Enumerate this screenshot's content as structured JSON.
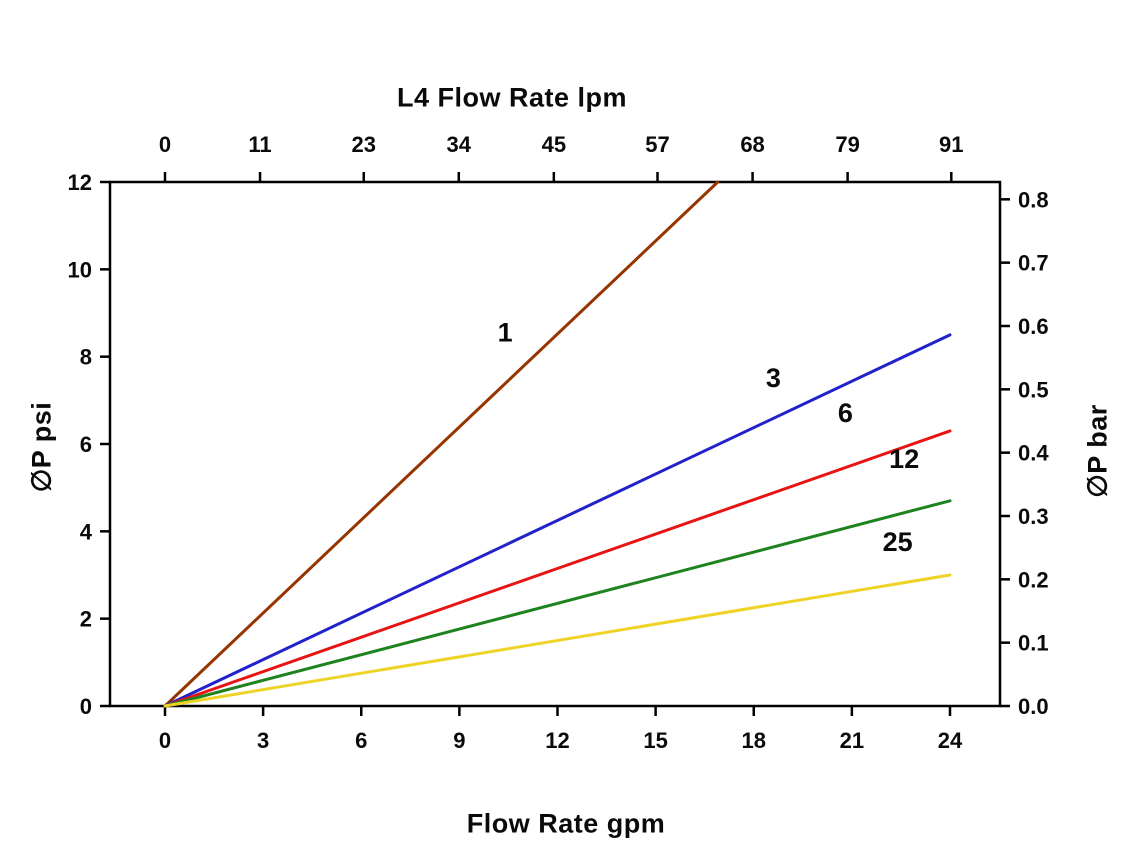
{
  "chart_data": {
    "type": "line",
    "title": "",
    "x_top": {
      "label": "L4 Flow Rate lpm",
      "ticks": [
        0,
        11,
        23,
        34,
        45,
        57,
        68,
        79,
        91
      ],
      "lpm_per_gpm": 3.78541
    },
    "x_bottom": {
      "label": "Flow Rate gpm",
      "ticks": [
        0,
        3,
        6,
        9,
        12,
        15,
        18,
        21,
        24
      ],
      "range": [
        0,
        24
      ]
    },
    "y_left": {
      "label": "∅P psi",
      "ticks": [
        0,
        2,
        4,
        6,
        8,
        10,
        12
      ],
      "range": [
        0,
        12
      ]
    },
    "y_right": {
      "label": "∅P bar",
      "tick_labels": [
        "0.0",
        "0.1",
        "0.2",
        "0.3",
        "0.4",
        "0.5",
        "0.6",
        "0.7",
        "0.8"
      ],
      "psi_per_bar": 14.5038
    },
    "grid": false,
    "legend": "inline-labels",
    "series": [
      {
        "name": "1",
        "color": "#953500",
        "points": [
          [
            0,
            0
          ],
          [
            16.9,
            12
          ]
        ]
      },
      {
        "name": "3",
        "color": "#2222cc",
        "points": [
          [
            0,
            0
          ],
          [
            24,
            8.5
          ]
        ]
      },
      {
        "name": "6",
        "color": "#e81414",
        "points": [
          [
            0,
            0
          ],
          [
            24,
            6.3
          ]
        ]
      },
      {
        "name": "12",
        "color": "#1e821e",
        "points": [
          [
            0,
            0
          ],
          [
            24,
            4.7
          ]
        ]
      },
      {
        "name": "25",
        "color": "#eed327",
        "points": [
          [
            0,
            0
          ],
          [
            24,
            3.0
          ]
        ]
      }
    ],
    "series_labels": [
      {
        "text": "1",
        "x": 10.4,
        "y": 8.35
      },
      {
        "text": "3",
        "x": 18.6,
        "y": 7.3
      },
      {
        "text": "6",
        "x": 20.8,
        "y": 6.5
      },
      {
        "text": "12",
        "x": 22.6,
        "y": 5.45
      },
      {
        "text": "25",
        "x": 22.4,
        "y": 3.55
      }
    ]
  }
}
